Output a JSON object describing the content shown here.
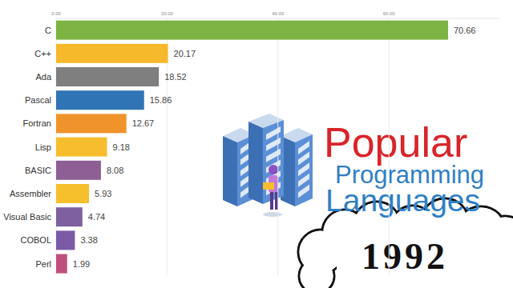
{
  "chart_data": {
    "type": "bar",
    "orientation": "horizontal",
    "title": "Popular Programming Languages",
    "subtitle": "1992",
    "categories": [
      "C",
      "C++",
      "Ada",
      "Pascal",
      "Fortran",
      "Lisp",
      "BASIC",
      "Assembler",
      "Visual Basic",
      "COBOL",
      "Perl"
    ],
    "values": [
      70.66,
      20.17,
      18.52,
      15.86,
      12.67,
      9.18,
      8.08,
      5.93,
      4.74,
      3.38,
      1.99
    ],
    "colors": [
      "#7cb342",
      "#f6b92b",
      "#7f7f7f",
      "#2f74b5",
      "#f0932b",
      "#f6bd2e",
      "#8e5f95",
      "#f6bf2c",
      "#7e5fa0",
      "#7c5aa6",
      "#c04f7c"
    ],
    "xlim": [
      0,
      80
    ],
    "xticks": [
      {
        "value": 0,
        "label": "0.00"
      },
      {
        "value": 20,
        "label": "20.00"
      },
      {
        "value": 40,
        "label": "40.00"
      },
      {
        "value": 60,
        "label": "60.00"
      }
    ],
    "grid": true,
    "data_labels": true
  }
}
